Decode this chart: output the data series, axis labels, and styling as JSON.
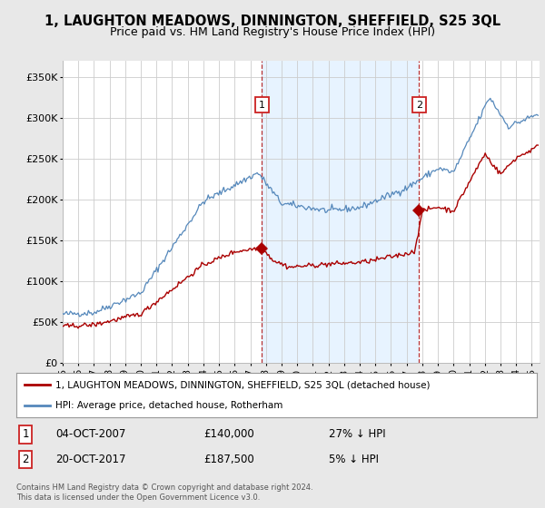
{
  "title": "1, LAUGHTON MEADOWS, DINNINGTON, SHEFFIELD, S25 3QL",
  "subtitle": "Price paid vs. HM Land Registry's House Price Index (HPI)",
  "background_color": "#e8e8e8",
  "plot_bg_color": "#ffffff",
  "hpi_color": "#5588bb",
  "hpi_fill_color": "#ddeeff",
  "price_color": "#aa0000",
  "ylim": [
    0,
    370000
  ],
  "yticks": [
    0,
    50000,
    100000,
    150000,
    200000,
    250000,
    300000,
    350000
  ],
  "ytick_labels": [
    "£0",
    "£50K",
    "£100K",
    "£150K",
    "£200K",
    "£250K",
    "£300K",
    "£350K"
  ],
  "sale1_x": 2007.75,
  "sale1_y": 140000,
  "sale2_x": 2017.8,
  "sale2_y": 187500,
  "sale1_date": "04-OCT-2007",
  "sale1_price": "£140,000",
  "sale1_hpi": "27% ↓ HPI",
  "sale2_date": "20-OCT-2017",
  "sale2_price": "£187,500",
  "sale2_hpi": "5% ↓ HPI",
  "legend_line1": "1, LAUGHTON MEADOWS, DINNINGTON, SHEFFIELD, S25 3QL (detached house)",
  "legend_line2": "HPI: Average price, detached house, Rotherham",
  "footer": "Contains HM Land Registry data © Crown copyright and database right 2024.\nThis data is licensed under the Open Government Licence v3.0.",
  "xmin": 1995,
  "xmax": 2025.5
}
